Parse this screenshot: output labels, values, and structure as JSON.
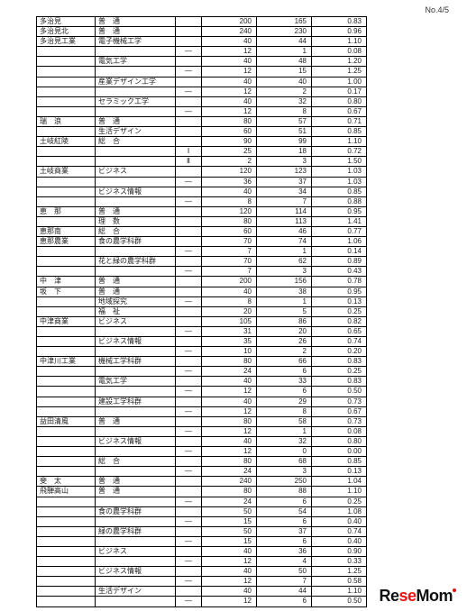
{
  "page_label": "No.4/5",
  "logo": {
    "part1": "Re",
    "part2": "se",
    "part3": "Mom"
  },
  "rows": [
    {
      "ss": true,
      "school": "多治見",
      "course": "普　通",
      "mark": "",
      "a": "200",
      "b": "165",
      "r": "0.83"
    },
    {
      "ss": true,
      "school": "多治見北",
      "course": "普　通",
      "mark": "",
      "a": "240",
      "b": "230",
      "r": "0.96"
    },
    {
      "ss": true,
      "school": "多治見工業",
      "course": "電子機械工学",
      "mark": "",
      "a": "40",
      "b": "44",
      "r": "1.10"
    },
    {
      "school": "",
      "course": "",
      "mark": "—",
      "a": "12",
      "b": "1",
      "r": "0.08"
    },
    {
      "school": "",
      "course": "電気工学",
      "mark": "",
      "a": "40",
      "b": "48",
      "r": "1.20"
    },
    {
      "school": "",
      "course": "",
      "mark": "—",
      "a": "12",
      "b": "15",
      "r": "1.25"
    },
    {
      "school": "",
      "course": "産業デザイン工学",
      "mark": "",
      "a": "40",
      "b": "40",
      "r": "1.00"
    },
    {
      "school": "",
      "course": "",
      "mark": "—",
      "a": "12",
      "b": "2",
      "r": "0.17"
    },
    {
      "school": "",
      "course": "セラミック工学",
      "mark": "",
      "a": "40",
      "b": "32",
      "r": "0.80"
    },
    {
      "school": "",
      "course": "",
      "mark": "—",
      "a": "12",
      "b": "8",
      "r": "0.67"
    },
    {
      "ss": true,
      "school": "瑞　浪",
      "course": "普　通",
      "mark": "",
      "a": "80",
      "b": "57",
      "r": "0.71"
    },
    {
      "school": "",
      "course": "生活デザイン",
      "mark": "",
      "a": "60",
      "b": "51",
      "r": "0.85"
    },
    {
      "ss": true,
      "school": "土岐紅陵",
      "course": "総　合",
      "mark": "",
      "a": "90",
      "b": "99",
      "r": "1.10"
    },
    {
      "school": "",
      "course": "",
      "mark": "Ⅰ",
      "a": "25",
      "b": "18",
      "r": "0.72"
    },
    {
      "school": "",
      "course": "",
      "mark": "Ⅱ",
      "a": "2",
      "b": "3",
      "r": "1.50"
    },
    {
      "ss": true,
      "school": "土岐商業",
      "course": "ビジネス",
      "mark": "",
      "a": "120",
      "b": "123",
      "r": "1.03"
    },
    {
      "school": "",
      "course": "",
      "mark": "—",
      "a": "36",
      "b": "37",
      "r": "1.03"
    },
    {
      "school": "",
      "course": "ビジネス情報",
      "mark": "",
      "a": "40",
      "b": "34",
      "r": "0.85"
    },
    {
      "school": "",
      "course": "",
      "mark": "—",
      "a": "8",
      "b": "7",
      "r": "0.88"
    },
    {
      "ss": true,
      "school": "恵　那",
      "course": "普　通",
      "mark": "",
      "a": "120",
      "b": "114",
      "r": "0.95"
    },
    {
      "school": "",
      "course": "理　数",
      "mark": "",
      "a": "80",
      "b": "113",
      "r": "1.41"
    },
    {
      "ss": true,
      "school": "恵那南",
      "course": "総　合",
      "mark": "",
      "a": "60",
      "b": "46",
      "r": "0.77"
    },
    {
      "ss": true,
      "school": "恵那農業",
      "course": "食の農学科群",
      "mark": "",
      "a": "70",
      "b": "74",
      "r": "1.06"
    },
    {
      "school": "",
      "course": "",
      "mark": "—",
      "a": "7",
      "b": "1",
      "r": "0.14"
    },
    {
      "school": "",
      "course": "花と緑の農学科群",
      "mark": "",
      "a": "70",
      "b": "62",
      "r": "0.89"
    },
    {
      "school": "",
      "course": "",
      "mark": "—",
      "a": "7",
      "b": "3",
      "r": "0.43"
    },
    {
      "ss": true,
      "school": "中　津",
      "course": "普　通",
      "mark": "",
      "a": "200",
      "b": "156",
      "r": "0.78"
    },
    {
      "ss": true,
      "school": "坂　下",
      "course": "普　通",
      "mark": "",
      "a": "40",
      "b": "38",
      "r": "0.95"
    },
    {
      "school": "",
      "course": "地域探究",
      "mark": "—",
      "a": "8",
      "b": "1",
      "r": "0.13"
    },
    {
      "school": "",
      "course": "福　祉",
      "mark": "",
      "a": "20",
      "b": "5",
      "r": "0.25"
    },
    {
      "ss": true,
      "school": "中津商業",
      "course": "ビジネス",
      "mark": "",
      "a": "105",
      "b": "86",
      "r": "0.82"
    },
    {
      "school": "",
      "course": "",
      "mark": "—",
      "a": "31",
      "b": "20",
      "r": "0.65"
    },
    {
      "school": "",
      "course": "ビジネス情報",
      "mark": "",
      "a": "35",
      "b": "26",
      "r": "0.74"
    },
    {
      "school": "",
      "course": "",
      "mark": "—",
      "a": "10",
      "b": "2",
      "r": "0.20"
    },
    {
      "ss": true,
      "school": "中津川工業",
      "course": "機械工学科群",
      "mark": "",
      "a": "80",
      "b": "66",
      "r": "0.83"
    },
    {
      "school": "",
      "course": "",
      "mark": "—",
      "a": "24",
      "b": "6",
      "r": "0.25"
    },
    {
      "school": "",
      "course": "電気工学",
      "mark": "",
      "a": "40",
      "b": "33",
      "r": "0.83"
    },
    {
      "school": "",
      "course": "",
      "mark": "—",
      "a": "12",
      "b": "6",
      "r": "0.50"
    },
    {
      "school": "",
      "course": "建設工学科群",
      "mark": "",
      "a": "40",
      "b": "29",
      "r": "0.73"
    },
    {
      "school": "",
      "course": "",
      "mark": "—",
      "a": "12",
      "b": "8",
      "r": "0.67"
    },
    {
      "ss": true,
      "school": "益田清風",
      "course": "普　通",
      "mark": "",
      "a": "80",
      "b": "58",
      "r": "0.73"
    },
    {
      "school": "",
      "course": "",
      "mark": "—",
      "a": "12",
      "b": "1",
      "r": "0.08"
    },
    {
      "school": "",
      "course": "ビジネス情報",
      "mark": "",
      "a": "40",
      "b": "32",
      "r": "0.80"
    },
    {
      "school": "",
      "course": "",
      "mark": "—",
      "a": "12",
      "b": "0",
      "r": "0.00"
    },
    {
      "school": "",
      "course": "総　合",
      "mark": "",
      "a": "80",
      "b": "68",
      "r": "0.85"
    },
    {
      "school": "",
      "course": "",
      "mark": "—",
      "a": "24",
      "b": "3",
      "r": "0.13"
    },
    {
      "ss": true,
      "school": "斐　太",
      "course": "普　通",
      "mark": "",
      "a": "240",
      "b": "250",
      "r": "1.04"
    },
    {
      "ss": true,
      "school": "飛騨高山",
      "course": "普　通",
      "mark": "",
      "a": "80",
      "b": "88",
      "r": "1.10"
    },
    {
      "school": "",
      "course": "",
      "mark": "—",
      "a": "24",
      "b": "6",
      "r": "0.25"
    },
    {
      "school": "",
      "course": "食の農学科群",
      "mark": "",
      "a": "50",
      "b": "54",
      "r": "1.08"
    },
    {
      "school": "",
      "course": "",
      "mark": "—",
      "a": "15",
      "b": "6",
      "r": "0.40"
    },
    {
      "school": "",
      "course": "緑の農学科群",
      "mark": "",
      "a": "50",
      "b": "37",
      "r": "0.74"
    },
    {
      "school": "",
      "course": "",
      "mark": "—",
      "a": "15",
      "b": "6",
      "r": "0.40"
    },
    {
      "school": "",
      "course": "ビジネス",
      "mark": "",
      "a": "40",
      "b": "36",
      "r": "0.90"
    },
    {
      "school": "",
      "course": "",
      "mark": "—",
      "a": "12",
      "b": "4",
      "r": "0.33"
    },
    {
      "school": "",
      "course": "ビジネス情報",
      "mark": "",
      "a": "40",
      "b": "50",
      "r": "1.25"
    },
    {
      "school": "",
      "course": "",
      "mark": "—",
      "a": "12",
      "b": "7",
      "r": "0.58"
    },
    {
      "school": "",
      "course": "生活デザイン",
      "mark": "",
      "a": "40",
      "b": "44",
      "r": "1.10"
    },
    {
      "school": "",
      "course": "",
      "mark": "—",
      "a": "12",
      "b": "6",
      "r": "0.50"
    }
  ]
}
